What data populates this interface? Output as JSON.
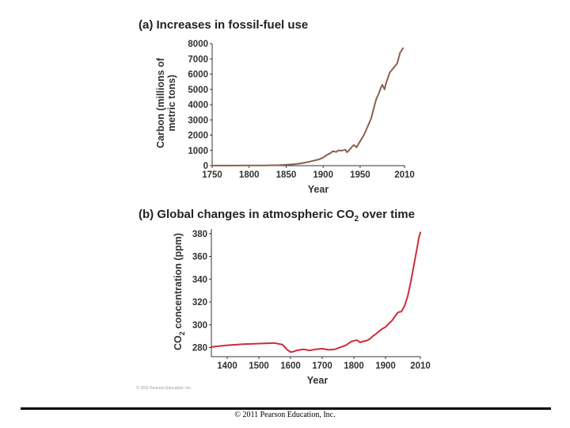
{
  "chart_data": [
    {
      "type": "line",
      "title": "(a) Increases in fossil-fuel use",
      "xlabel": "Year",
      "ylabel_lines": [
        "Carbon (millions of",
        "metric tons)"
      ],
      "xlim": [
        1750,
        2010
      ],
      "ylim": [
        0,
        8000
      ],
      "xticks": [
        1750,
        1800,
        1850,
        1900,
        1950,
        2010
      ],
      "yticks": [
        0,
        1000,
        2000,
        3000,
        4000,
        5000,
        6000,
        7000,
        8000
      ],
      "color": "#8b6050",
      "series": [
        {
          "x": [
            1750,
            1775,
            1800,
            1820,
            1840,
            1850,
            1860,
            1870,
            1880,
            1885,
            1890,
            1895,
            1900,
            1905,
            1910,
            1913,
            1918,
            1920,
            1925,
            1930,
            1932,
            1935,
            1940,
            1942,
            1945,
            1950,
            1955,
            1960,
            1965,
            1970,
            1972,
            1975,
            1978,
            1980,
            1983,
            1985,
            1990,
            1995,
            2000,
            2004,
            2008
          ],
          "y": [
            3,
            5,
            8,
            15,
            30,
            55,
            90,
            150,
            240,
            300,
            360,
            420,
            530,
            700,
            820,
            940,
            900,
            1000,
            980,
            1050,
            880,
            1000,
            1300,
            1350,
            1200,
            1600,
            2000,
            2550,
            3100,
            4050,
            4400,
            4700,
            5100,
            5300,
            5000,
            5400,
            6100,
            6400,
            6700,
            7400,
            7700
          ]
        }
      ]
    },
    {
      "type": "line",
      "title_main": "(b) Global changes in atmospheric CO",
      "title_sub": "2",
      "title_tail": " over time",
      "xlabel": "Year",
      "ylabel_main": "CO",
      "ylabel_sub": "2",
      "ylabel_tail": " concentration (ppm)",
      "xlim": [
        1350,
        2010
      ],
      "ylim": [
        272,
        384
      ],
      "xticks": [
        1400,
        1500,
        1600,
        1700,
        1800,
        1900,
        2010
      ],
      "yticks": [
        280,
        300,
        320,
        340,
        360,
        380
      ],
      "color": "#d22a3a",
      "series": [
        {
          "x": [
            1350,
            1400,
            1450,
            1500,
            1550,
            1575,
            1590,
            1600,
            1610,
            1620,
            1640,
            1660,
            1680,
            1700,
            1720,
            1740,
            1760,
            1775,
            1790,
            1800,
            1810,
            1820,
            1830,
            1840,
            1850,
            1860,
            1870,
            1880,
            1890,
            1900,
            1910,
            1920,
            1930,
            1940,
            1950,
            1960,
            1970,
            1980,
            1990,
            2000,
            2005,
            2010
          ],
          "y": [
            280.5,
            282,
            283,
            283.5,
            284,
            282.5,
            278,
            276,
            276.5,
            277.5,
            278.5,
            277.5,
            278.5,
            279,
            278,
            278.5,
            280.5,
            282,
            285,
            286,
            286.5,
            284.5,
            285.5,
            286,
            287.5,
            290,
            292,
            294.5,
            296.5,
            298,
            301,
            303.5,
            307.5,
            311,
            311.5,
            316.5,
            325,
            338,
            353,
            368,
            376,
            381
          ]
        }
      ]
    }
  ],
  "copyright_small": "© 2011 Pearson Education, Inc.",
  "footer": "© 2011 Pearson Education, Inc."
}
